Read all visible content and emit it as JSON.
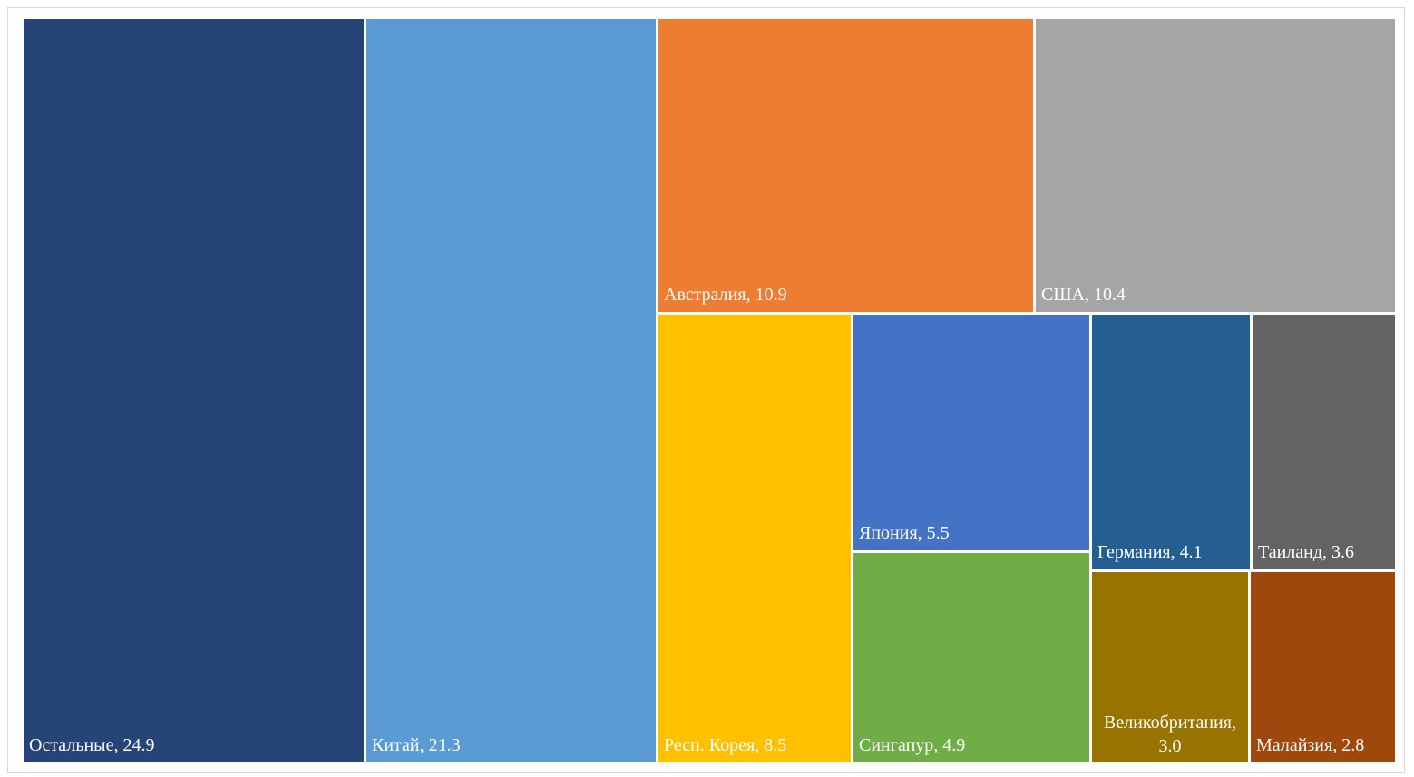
{
  "chart_data": {
    "type": "treemap",
    "title": "",
    "items": [
      {
        "name": "Остальные",
        "value": 24.9,
        "label": "Остальные, 24.9",
        "color": "#264478"
      },
      {
        "name": "Китай",
        "value": 21.3,
        "label": "Китай, 21.3",
        "color": "#5B9BD5"
      },
      {
        "name": "Австралия",
        "value": 10.9,
        "label": "Австралия, 10.9",
        "color": "#ED7D31"
      },
      {
        "name": "США",
        "value": 10.4,
        "label": "США, 10.4",
        "color": "#A5A5A5"
      },
      {
        "name": "Респ. Корея",
        "value": 8.5,
        "label": "Респ. Корея, 8.5",
        "color": "#FFC000"
      },
      {
        "name": "Япония",
        "value": 5.5,
        "label": "Япония, 5.5",
        "color": "#4472C4"
      },
      {
        "name": "Сингапур",
        "value": 4.9,
        "label": "Сингапур, 4.9",
        "color": "#70AD47"
      },
      {
        "name": "Германия",
        "value": 4.1,
        "label": "Германия, 4.1",
        "color": "#255E91"
      },
      {
        "name": "Таиланд",
        "value": 3.6,
        "label": "Таиланд, 3.6",
        "color": "#636363"
      },
      {
        "name": "Великобритания",
        "value": 3.0,
        "label": "Великобритания, 3.0",
        "label_lines": [
          "Великобритания,",
          "3.0"
        ],
        "color": "#997300"
      },
      {
        "name": "Малайзия",
        "value": 2.8,
        "label": "Малайзия, 2.8",
        "color": "#9E480E"
      }
    ]
  }
}
